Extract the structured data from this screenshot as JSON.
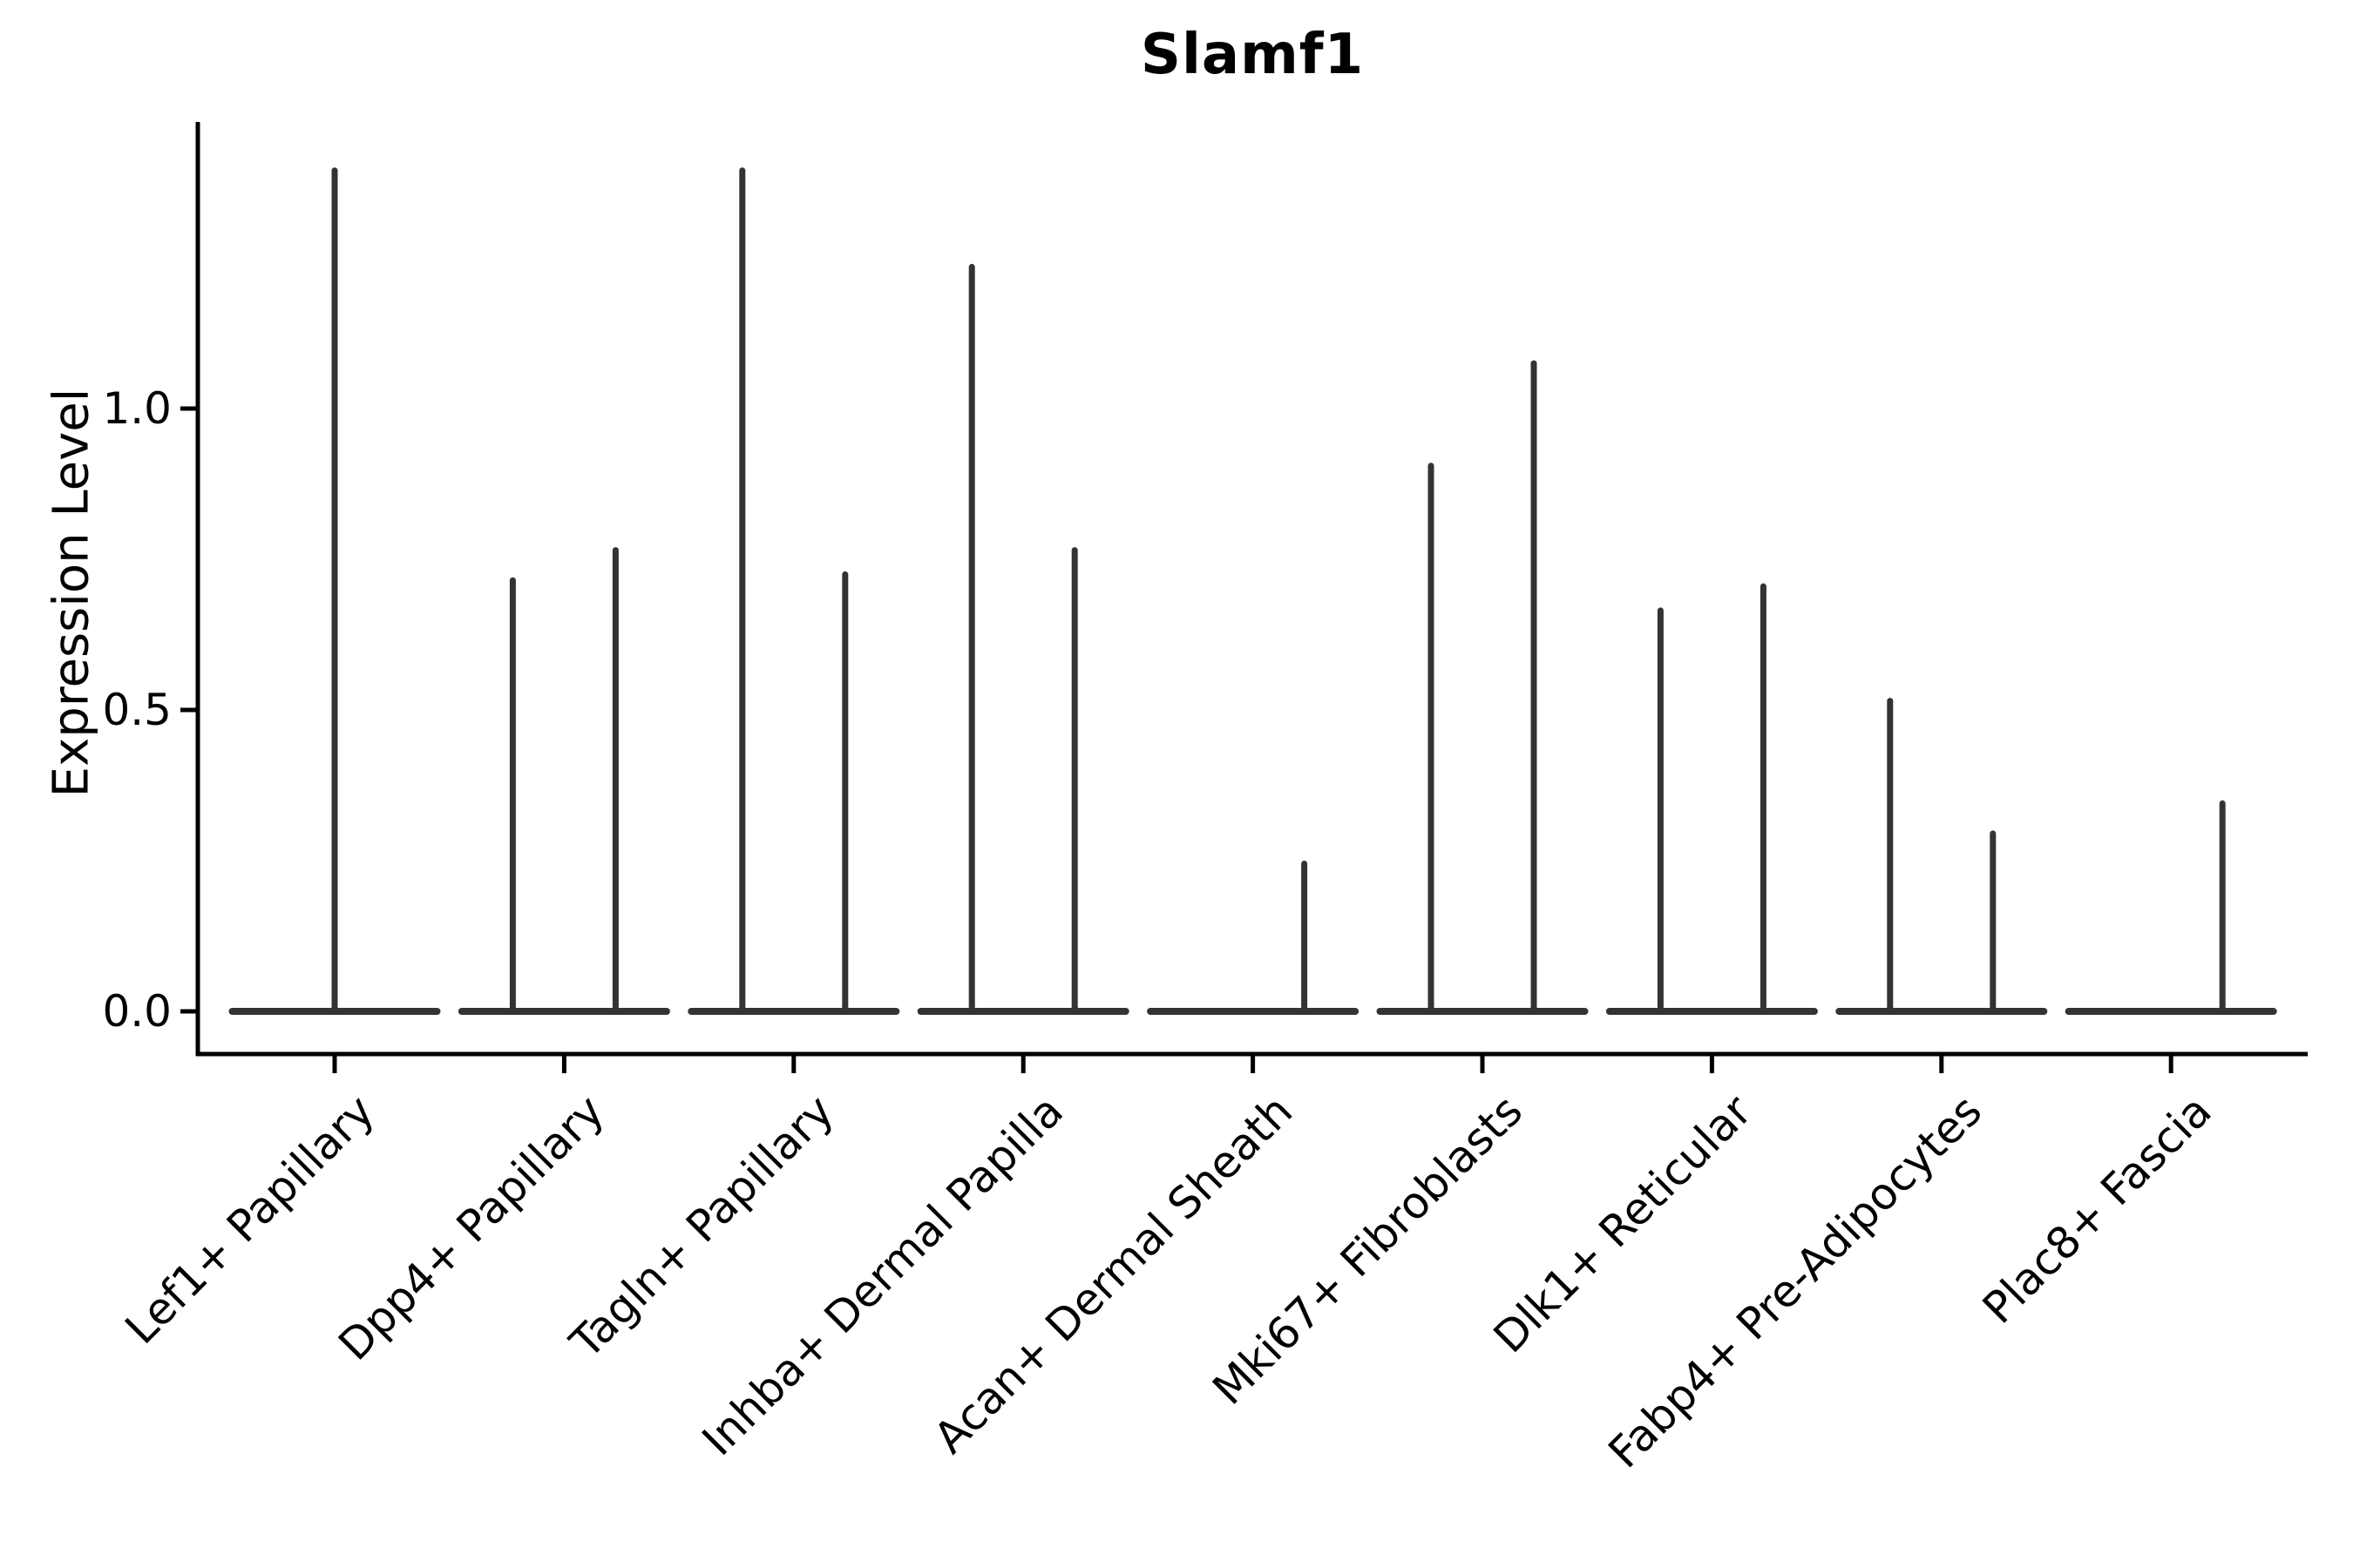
{
  "chart_data": {
    "type": "violin",
    "title": "Slamf1",
    "ylabel": "Expression Level",
    "xlabel": "",
    "yticks": [
      {
        "label": "0.0",
        "value": 0.0
      },
      {
        "label": "0.5",
        "value": 0.5
      },
      {
        "label": "1.0",
        "value": 1.0
      }
    ],
    "ylim": [
      -0.071,
      1.476
    ],
    "grid": false,
    "legend_position": "none",
    "groups": [
      {
        "label": "Lef1+ Papillary",
        "violins": [
          {
            "side": "center",
            "max": 1.4
          }
        ]
      },
      {
        "label": "Dpp4+ Papillary",
        "violins": [
          {
            "side": "left",
            "max": 0.72
          },
          {
            "side": "right",
            "max": 0.77
          }
        ]
      },
      {
        "label": "Tagln+ Papillary",
        "violins": [
          {
            "side": "left",
            "max": 1.4
          },
          {
            "side": "right",
            "max": 0.73
          }
        ]
      },
      {
        "label": "Inhba+ Dermal Papilla",
        "violins": [
          {
            "side": "left",
            "max": 1.24
          },
          {
            "side": "right",
            "max": 0.77
          }
        ]
      },
      {
        "label": "Acan+ Dermal Sheath",
        "violins": [
          {
            "side": "right",
            "max": 0.25
          }
        ]
      },
      {
        "label": "Mki67+ Fibroblasts",
        "violins": [
          {
            "side": "left",
            "max": 0.91
          },
          {
            "side": "right",
            "max": 1.08
          }
        ]
      },
      {
        "label": "Dlk1+ Reticular",
        "violins": [
          {
            "side": "left",
            "max": 0.67
          },
          {
            "side": "right",
            "max": 0.71
          }
        ]
      },
      {
        "label": "Fabp4+ Pre-Adipocytes",
        "violins": [
          {
            "side": "left",
            "max": 0.52
          },
          {
            "side": "right",
            "max": 0.3
          }
        ]
      },
      {
        "label": "Plac8+ Fascia",
        "violins": [
          {
            "side": "right",
            "max": 0.35
          }
        ]
      }
    ],
    "colors": {
      "violin": "#333333",
      "axis": "#000000",
      "text": "#000000",
      "background": "#ffffff"
    }
  }
}
